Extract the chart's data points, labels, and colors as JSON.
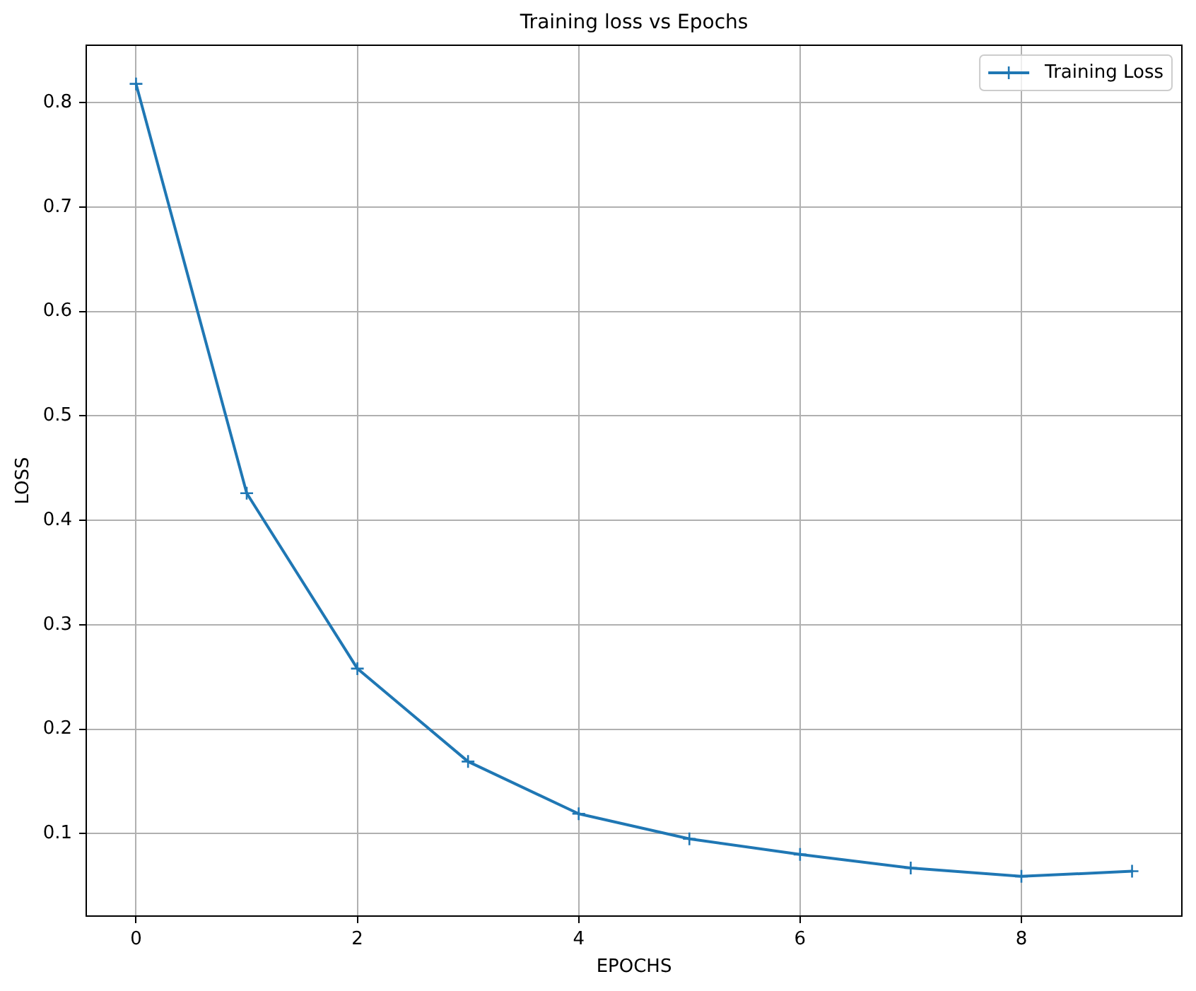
{
  "chart_data": {
    "type": "line",
    "title": "Training loss vs Epochs",
    "xlabel": "EPOCHS",
    "ylabel": "LOSS",
    "x": [
      0,
      1,
      2,
      3,
      4,
      5,
      6,
      7,
      8,
      9
    ],
    "series": [
      {
        "name": "Training Loss",
        "color": "#1f77b4",
        "values": [
          0.818,
          0.426,
          0.258,
          0.169,
          0.119,
          0.095,
          0.08,
          0.067,
          0.059,
          0.064
        ]
      }
    ],
    "xlim": [
      -0.45,
      9.45
    ],
    "ylim": [
      0.021,
      0.855
    ],
    "xticks": [
      0,
      2,
      4,
      6,
      8
    ],
    "yticks": [
      0.1,
      0.2,
      0.3,
      0.4,
      0.5,
      0.6,
      0.7,
      0.8
    ],
    "grid": true,
    "legend": "top right",
    "marker": "cross",
    "line_style": "solid"
  }
}
